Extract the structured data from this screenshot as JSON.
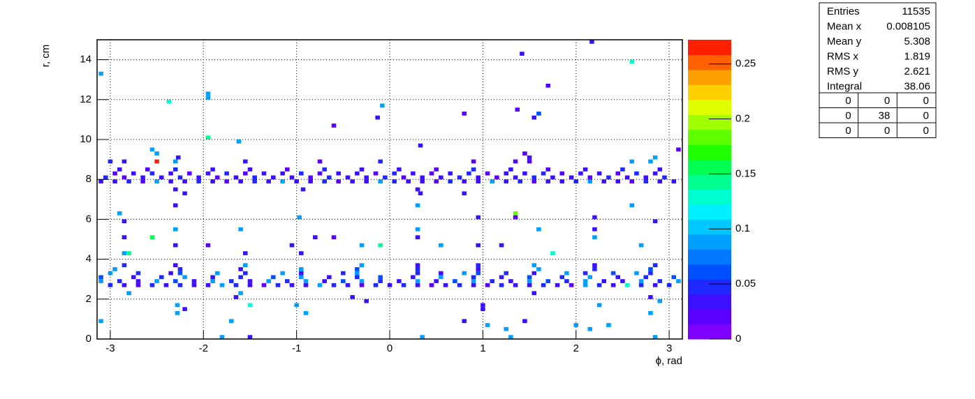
{
  "chart_data": {
    "type": "heatmap",
    "x_label": "ϕ, rad",
    "y_label": "r, cm",
    "xlim": [
      -3.1416,
      3.1416
    ],
    "ylim": [
      0,
      15
    ],
    "zlim": [
      0,
      0.272
    ],
    "nbinsx": 128,
    "nbinsy": 75,
    "xticks": [
      -3,
      -2,
      -1,
      0,
      1,
      2,
      3
    ],
    "yticks": [
      0,
      2,
      4,
      6,
      8,
      10,
      12,
      14
    ],
    "zticks": [
      0,
      0.05,
      0.1,
      0.15,
      0.2,
      0.25
    ],
    "grid": true,
    "colors": [
      "#7f00ff",
      "#5a00ff",
      "#3c10ff",
      "#1e28ff",
      "#0050ff",
      "#0078ff",
      "#00a0ff",
      "#00c8ff",
      "#00f0ff",
      "#00ffd0",
      "#00ff90",
      "#00ff50",
      "#20ff00",
      "#60ff00",
      "#a0ff00",
      "#e0ff00",
      "#ffd000",
      "#ffa000",
      "#ff6000",
      "#ff2000"
    ],
    "rows": [
      {
        "y": 7.9,
        "x": [
          -3.1,
          -2.95,
          -2.8,
          -2.65,
          -2.5,
          -2.35,
          -2.2,
          -2.05,
          -1.9,
          -1.75,
          -1.6,
          -1.45,
          -1.3,
          -1.15,
          -1.0,
          -0.85,
          -0.7,
          -0.55,
          -0.4,
          -0.25,
          -0.1,
          0.05,
          0.2,
          0.35,
          0.5,
          0.65,
          0.8,
          0.95,
          1.1,
          1.25,
          1.4,
          1.55,
          1.7,
          1.85,
          2.0,
          2.15,
          2.3,
          2.45,
          2.6,
          2.75,
          2.9,
          3.05
        ],
        "z": [
          0.04,
          0.03,
          0.05,
          0.02,
          0.09,
          0.04,
          0.03,
          0.05,
          0.04,
          0.02,
          0.03,
          0.05,
          0.04,
          0.09,
          0.03,
          0.04,
          0.05,
          0.02,
          0.04,
          0.03,
          0.09,
          0.05,
          0.04,
          0.03,
          0.02,
          0.05,
          0.04,
          0.03,
          0.09,
          0.04,
          0.05,
          0.02,
          0.03,
          0.04,
          0.05,
          0.09,
          0.03,
          0.04,
          0.02,
          0.05,
          0.04,
          0.03
        ]
      },
      {
        "y": 8.1,
        "x": [
          -3.05,
          -2.85,
          -2.65,
          -2.45,
          -2.25,
          -2.05,
          -1.85,
          -1.65,
          -1.45,
          -1.25,
          -1.05,
          -0.85,
          -0.65,
          -0.45,
          -0.25,
          -0.05,
          0.15,
          0.35,
          0.55,
          0.75,
          0.95,
          1.15,
          1.35,
          1.55,
          1.75,
          1.95,
          2.15,
          2.35,
          2.55,
          2.75,
          2.95
        ],
        "z": [
          0.05,
          0.02,
          0.04,
          0.03,
          0.05,
          0.04,
          0.02,
          0.03,
          0.05,
          0.04,
          0.03,
          0.02,
          0.05,
          0.04,
          0.03,
          0.05,
          0.02,
          0.04,
          0.03,
          0.05,
          0.04,
          0.02,
          0.03,
          0.05,
          0.04,
          0.03,
          0.02,
          0.05,
          0.04,
          0.03,
          0.05
        ]
      },
      {
        "y": 8.3,
        "x": [
          -2.95,
          -2.75,
          -2.55,
          -2.35,
          -2.15,
          -1.95,
          -1.75,
          -1.55,
          -1.35,
          -1.15,
          -0.95,
          -0.75,
          -0.55,
          -0.35,
          -0.15,
          0.05,
          0.25,
          0.45,
          0.65,
          0.85,
          1.05,
          1.25,
          1.45,
          1.65,
          1.85,
          2.05,
          2.25,
          2.45,
          2.65,
          2.85
        ],
        "z": [
          0.02,
          0.04,
          0.05,
          0.03,
          0.02,
          0.04,
          0.05,
          0.02,
          0.03,
          0.04,
          0.05,
          0.02,
          0.04,
          0.03,
          0.02,
          0.05,
          0.04,
          0.02,
          0.03,
          0.05,
          0.02,
          0.04,
          0.03,
          0.05,
          0.02,
          0.04,
          0.03,
          0.02,
          0.05,
          0.04
        ]
      },
      {
        "y": 8.5,
        "x": [
          -2.9,
          -2.6,
          -2.3,
          -1.9,
          -1.5,
          -1.1,
          -0.7,
          -0.3,
          0.1,
          0.5,
          0.9,
          1.3,
          1.7,
          2.1,
          2.5,
          2.9
        ],
        "z": [
          0.04,
          0.02,
          0.05,
          0.03,
          0.04,
          0.02,
          0.05,
          0.04,
          0.03,
          0.02,
          0.05,
          0.04,
          0.02,
          0.03,
          0.05,
          0.04
        ]
      },
      {
        "y": 8.9,
        "x": [
          -3.0,
          -2.85,
          -2.5,
          -2.3,
          -1.55,
          -0.75,
          -0.1,
          0.9,
          1.35,
          1.5,
          2.6,
          2.8
        ],
        "z": [
          0.05,
          0.04,
          0.27,
          0.09,
          0.04,
          0.02,
          0.05,
          0.02,
          0.02,
          0.02,
          0.09,
          0.09
        ]
      },
      {
        "y": 2.7,
        "x": [
          -3.0,
          -2.85,
          -2.7,
          -2.55,
          -2.4,
          -2.25,
          -2.1,
          -1.95,
          -1.8,
          -1.65,
          -1.5,
          -1.35,
          -1.2,
          -1.05,
          -0.9,
          -0.75,
          -0.6,
          -0.45,
          -0.3,
          -0.15,
          0,
          0.15,
          0.3,
          0.45,
          0.6,
          0.75,
          0.9,
          1.05,
          1.2,
          1.35,
          1.5,
          1.65,
          1.8,
          1.95,
          2.1,
          2.25,
          2.4,
          2.55,
          2.7,
          2.85,
          3.0
        ],
        "z": [
          0.05,
          0.04,
          0.02,
          0.05,
          0.04,
          0.05,
          0.03,
          0.04,
          0.09,
          0.05,
          0.04,
          0.02,
          0.05,
          0.04,
          0.03,
          0.09,
          0.05,
          0.04,
          0.02,
          0.05,
          0.04,
          0.05,
          0.03,
          0.02,
          0.04,
          0.05,
          0.04,
          0.02,
          0.05,
          0.04,
          0.03,
          0.05,
          0.04,
          0.02,
          0.09,
          0.05,
          0.04,
          0.13,
          0.05,
          0.04,
          0.05
        ]
      },
      {
        "y": 2.9,
        "x": [
          -3.1,
          -2.9,
          -2.7,
          -2.5,
          -2.3,
          -2.1,
          -1.9,
          -1.7,
          -1.5,
          -1.3,
          -1.1,
          -0.9,
          -0.7,
          -0.5,
          -0.3,
          -0.1,
          0.1,
          0.3,
          0.5,
          0.7,
          0.9,
          1.1,
          1.3,
          1.5,
          1.7,
          1.9,
          2.1,
          2.3,
          2.5,
          2.7,
          2.9,
          3.1
        ],
        "z": [
          0.09,
          0.05,
          0.04,
          0.09,
          0.06,
          0.03,
          0.09,
          0.05,
          0.04,
          0.09,
          0.05,
          0.09,
          0.04,
          0.06,
          0.09,
          0.05,
          0.03,
          0.09,
          0.04,
          0.06,
          0.09,
          0.05,
          0.04,
          0.09,
          0.06,
          0.05,
          0.09,
          0.04,
          0.03,
          0.09,
          0.05,
          0.09
        ]
      },
      {
        "y": 3.1,
        "x": [
          -3.1,
          -2.75,
          -2.45,
          -2.2,
          -1.9,
          -1.6,
          -1.25,
          -0.95,
          -0.65,
          -0.35,
          -0.1,
          0.25,
          0.55,
          0.9,
          1.2,
          1.5,
          1.85,
          2.15,
          2.45,
          2.75,
          3.05
        ],
        "z": [
          0.06,
          0.04,
          0.05,
          0.09,
          0.04,
          0.05,
          0.06,
          0.09,
          0.04,
          0.05,
          0.06,
          0.04,
          0.09,
          0.05,
          0.04,
          0.06,
          0.05,
          0.09,
          0.04,
          0.05,
          0.06
        ]
      },
      {
        "y": 3.3,
        "x": [
          -3.0,
          -2.7,
          -2.35,
          -2.25,
          -1.85,
          -1.55,
          -1.15,
          -0.95,
          -0.5,
          -0.35,
          0.3,
          0.55,
          0.8,
          0.95,
          1.25,
          1.55,
          1.9,
          2.1,
          2.4,
          2.65,
          2.8
        ],
        "z": [
          0.09,
          0.05,
          0.04,
          0.06,
          0.09,
          0.05,
          0.09,
          0.04,
          0.05,
          0.09,
          0.05,
          0.04,
          0.09,
          0.06,
          0.05,
          0.04,
          0.09,
          0.05,
          0.06,
          0.09,
          0.05
        ]
      },
      {
        "y": 3.5,
        "x": [
          -2.95,
          -2.25,
          -1.6,
          -0.95,
          -0.35,
          0.3,
          0.95,
          1.6,
          2.2,
          2.8
        ],
        "z": [
          0.09,
          0.05,
          0.04,
          0.09,
          0.06,
          0.05,
          0.04,
          0.09,
          0.05,
          0.06
        ]
      },
      {
        "y": 3.7,
        "x": [
          -2.85,
          -2.3,
          -1.55,
          -0.3,
          0.3,
          0.95,
          1.55,
          2.2,
          2.85
        ],
        "z": [
          0.05,
          0.04,
          0.09,
          0.09,
          0.04,
          0.05,
          0.09,
          0.04,
          0.05
        ]
      },
      {
        "y": 14.9,
        "x": [
          2.17
        ],
        "z": [
          0.04
        ]
      },
      {
        "y": 14.3,
        "x": [
          1.42
        ],
        "z": [
          0.04
        ]
      },
      {
        "y": 13.9,
        "x": [
          2.6
        ],
        "z": [
          0.13
        ]
      },
      {
        "y": 13.3,
        "x": [
          -3.1
        ],
        "z": [
          0.09
        ]
      },
      {
        "y": 12.7,
        "x": [
          1.7
        ],
        "z": [
          0.02
        ]
      },
      {
        "y": 12.3,
        "x": [
          -1.95
        ],
        "z": [
          0.09
        ]
      },
      {
        "y": 12.1,
        "x": [
          -1.95
        ],
        "z": [
          0.09
        ]
      },
      {
        "y": 11.9,
        "x": [
          -2.37
        ],
        "z": [
          0.13
        ]
      },
      {
        "y": 11.7,
        "x": [
          -0.08
        ],
        "z": [
          0.09
        ]
      },
      {
        "y": 11.5,
        "x": [
          1.37
        ],
        "z": [
          0.02
        ]
      },
      {
        "y": 11.3,
        "x": [
          0.8,
          1.6
        ],
        "z": [
          0.02,
          0.06
        ]
      },
      {
        "y": 11.1,
        "x": [
          -0.13,
          1.55
        ],
        "z": [
          0.04,
          0.04
        ]
      },
      {
        "y": 10.7,
        "x": [
          -0.6
        ],
        "z": [
          0.02
        ]
      },
      {
        "y": 10.1,
        "x": [
          -1.95
        ],
        "z": [
          0.14
        ]
      },
      {
        "y": 9.9,
        "x": [
          -1.62
        ],
        "z": [
          0.09
        ]
      },
      {
        "y": 9.7,
        "x": [
          0.33
        ],
        "z": [
          0.04
        ]
      },
      {
        "y": 9.5,
        "x": [
          -2.55,
          3.1
        ],
        "z": [
          0.09,
          0.02
        ]
      },
      {
        "y": 9.3,
        "x": [
          -2.5,
          1.45
        ],
        "z": [
          0.09,
          0.02
        ]
      },
      {
        "y": 9.1,
        "x": [
          -2.27,
          1.5,
          2.85
        ],
        "z": [
          0.04,
          0.04,
          0.09
        ]
      },
      {
        "y": 7.5,
        "x": [
          -2.3,
          -0.93,
          0.3
        ],
        "z": [
          0.04,
          0.04,
          0.04
        ]
      },
      {
        "y": 7.3,
        "x": [
          -2.2,
          0.33,
          0.8
        ],
        "z": [
          0.04,
          0.04,
          0.04
        ]
      },
      {
        "y": 6.7,
        "x": [
          -2.3,
          0.3,
          2.6
        ],
        "z": [
          0.04,
          0.09,
          0.09
        ]
      },
      {
        "y": 6.3,
        "x": [
          -2.9,
          1.35
        ],
        "z": [
          0.09,
          0.18
        ]
      },
      {
        "y": 6.1,
        "x": [
          -0.97,
          0.95,
          1.35,
          2.2
        ],
        "z": [
          0.09,
          0.04,
          0.02,
          0.04
        ]
      },
      {
        "y": 5.9,
        "x": [
          -2.85,
          2.85
        ],
        "z": [
          0.04,
          0.04
        ]
      },
      {
        "y": 5.5,
        "x": [
          -2.3,
          -1.6,
          0.3,
          1.6,
          2.2
        ],
        "z": [
          0.09,
          0.09,
          0.09,
          0.09,
          0.04
        ]
      },
      {
        "y": 5.1,
        "x": [
          -2.85,
          -2.55,
          -0.8,
          -0.6,
          0.3,
          2.2
        ],
        "z": [
          0.04,
          0.15,
          0.04,
          0.02,
          0.04,
          0.09
        ]
      },
      {
        "y": 4.7,
        "x": [
          -2.3,
          -1.95,
          -1.05,
          -0.3,
          -0.1,
          0.55,
          0.95,
          1.2,
          2.7
        ],
        "z": [
          0.04,
          0.02,
          0.04,
          0.09,
          0.14,
          0.09,
          0.04,
          0.04,
          0.09
        ]
      },
      {
        "y": 4.3,
        "x": [
          -2.85,
          -2.8,
          -1.55,
          -0.95,
          1.75
        ],
        "z": [
          0.09,
          0.14,
          0.04,
          0.04,
          0.13
        ]
      },
      {
        "y": 2.3,
        "x": [
          -2.8,
          -1.6,
          1.55
        ],
        "z": [
          0.09,
          0.09,
          0.04
        ]
      },
      {
        "y": 2.1,
        "x": [
          -1.65,
          -0.4,
          2.8
        ],
        "z": [
          0.04,
          0.04,
          0.04
        ]
      },
      {
        "y": 1.9,
        "x": [
          -0.25,
          2.9
        ],
        "z": [
          0.04,
          0.09
        ]
      },
      {
        "y": 1.7,
        "x": [
          -2.28,
          -1.5,
          -1.0,
          1.0,
          2.25
        ],
        "z": [
          0.09,
          0.13,
          0.09,
          0.04,
          0.09
        ]
      },
      {
        "y": 1.5,
        "x": [
          -2.2,
          1.0
        ],
        "z": [
          0.04,
          0.04
        ]
      },
      {
        "y": 1.3,
        "x": [
          -2.28,
          -0.9,
          2.8
        ],
        "z": [
          0.09,
          0.09,
          0.09
        ]
      },
      {
        "y": 0.9,
        "x": [
          -3.1,
          -1.7,
          0.8,
          1.45
        ],
        "z": [
          0.09,
          0.09,
          0.04,
          0.04
        ]
      },
      {
        "y": 0.7,
        "x": [
          1.05,
          2.0,
          2.35
        ],
        "z": [
          0.09,
          0.09,
          0.09
        ]
      },
      {
        "y": 0.5,
        "x": [
          1.25,
          2.15
        ],
        "z": [
          0.09,
          0.09
        ]
      },
      {
        "y": 0.1,
        "x": [
          -1.8,
          -1.5,
          0.35,
          1.3,
          2.85
        ],
        "z": [
          0.09,
          0.04,
          0.09,
          0.09,
          0.09
        ]
      }
    ]
  },
  "stats": {
    "rows": [
      [
        "Entries",
        "11535"
      ],
      [
        "Mean x",
        "0.008105"
      ],
      [
        "Mean y",
        "5.308"
      ],
      [
        "RMS x",
        "1.819"
      ],
      [
        "RMS y",
        "2.621"
      ],
      [
        "Integral",
        "38.06"
      ]
    ],
    "grid": [
      [
        "0",
        "0",
        "0"
      ],
      [
        "0",
        "38",
        "0"
      ],
      [
        "0",
        "0",
        "0"
      ]
    ]
  }
}
